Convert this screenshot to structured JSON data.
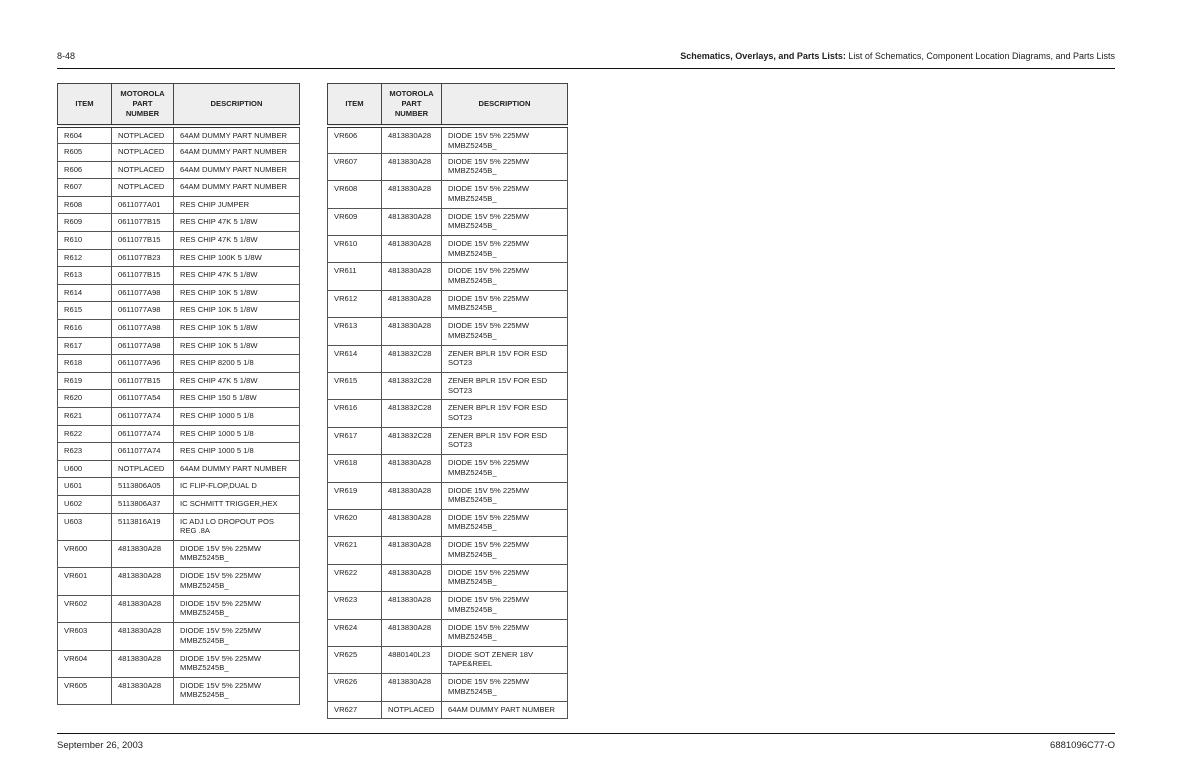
{
  "header": {
    "page_number": "8-48",
    "section_bold": "Schematics, Overlays, and Parts Lists:",
    "section_rest": " List of Schematics, Component Location Diagrams, and Parts Lists"
  },
  "footer": {
    "date": "September 26, 2003",
    "doc_number": "6881096C77-O"
  },
  "columns": {
    "item": "ITEM",
    "part_line1": "MOTOROLA",
    "part_line2": "PART",
    "part_line3": "NUMBER",
    "description": "DESCRIPTION"
  },
  "left_table": [
    [
      "R604",
      "NOTPLACED",
      "64AM DUMMY PART NUMBER"
    ],
    [
      "R605",
      "NOTPLACED",
      "64AM DUMMY PART NUMBER"
    ],
    [
      "R606",
      "NOTPLACED",
      "64AM DUMMY PART NUMBER"
    ],
    [
      "R607",
      "NOTPLACED",
      "64AM DUMMY PART NUMBER"
    ],
    [
      "R608",
      "0611077A01",
      "RES CHIP JUMPER"
    ],
    [
      "R609",
      "0611077B15",
      "RES CHIP 47K 5 1/8W"
    ],
    [
      "R610",
      "0611077B15",
      "RES CHIP 47K 5 1/8W"
    ],
    [
      "R612",
      "0611077B23",
      "RES CHIP 100K 5 1/8W"
    ],
    [
      "R613",
      "0611077B15",
      "RES CHIP 47K 5 1/8W"
    ],
    [
      "R614",
      "0611077A98",
      "RES CHIP 10K 5 1/8W"
    ],
    [
      "R615",
      "0611077A98",
      "RES CHIP 10K 5 1/8W"
    ],
    [
      "R616",
      "0611077A98",
      "RES CHIP 10K 5 1/8W"
    ],
    [
      "R617",
      "0611077A98",
      "RES CHIP 10K 5 1/8W"
    ],
    [
      "R618",
      "0611077A96",
      "RES CHIP 8200 5 1/8"
    ],
    [
      "R619",
      "0611077B15",
      "RES CHIP 47K 5 1/8W"
    ],
    [
      "R620",
      "0611077A54",
      "RES CHIP 150 5 1/8W"
    ],
    [
      "R621",
      "0611077A74",
      "RES CHIP 1000 5 1/8"
    ],
    [
      "R622",
      "0611077A74",
      "RES CHIP 1000 5 1/8"
    ],
    [
      "R623",
      "0611077A74",
      "RES CHIP 1000 5 1/8"
    ],
    [
      "U600",
      "NOTPLACED",
      "64AM DUMMY PART NUMBER"
    ],
    [
      "U601",
      "5113806A05",
      "IC FLIP-FLOP,DUAL D"
    ],
    [
      "U602",
      "5113806A37",
      "IC SCHMITT TRIGGER,HEX"
    ],
    [
      "U603",
      "5113816A19",
      "IC ADJ LO DROPOUT POS",
      "REG .8A"
    ],
    [
      "VR600",
      "4813830A28",
      "DIODE 15V 5% 225MW",
      "MMBZ5245B_"
    ],
    [
      "VR601",
      "4813830A28",
      "DIODE 15V 5% 225MW",
      "MMBZ5245B_"
    ],
    [
      "VR602",
      "4813830A28",
      "DIODE 15V 5% 225MW",
      "MMBZ5245B_"
    ],
    [
      "VR603",
      "4813830A28",
      "DIODE 15V 5% 225MW",
      "MMBZ5245B_"
    ],
    [
      "VR604",
      "4813830A28",
      "DIODE 15V 5% 225MW",
      "MMBZ5245B_"
    ],
    [
      "VR605",
      "4813830A28",
      "DIODE 15V 5% 225MW",
      "MMBZ5245B_"
    ]
  ],
  "right_table": [
    [
      "VR606",
      "4813830A28",
      "DIODE 15V 5% 225MW",
      "MMBZ5245B_"
    ],
    [
      "VR607",
      "4813830A28",
      "DIODE 15V 5% 225MW",
      "MMBZ5245B_"
    ],
    [
      "VR608",
      "4813830A28",
      "DIODE 15V 5% 225MW",
      "MMBZ5245B_"
    ],
    [
      "VR609",
      "4813830A28",
      "DIODE 15V 5% 225MW",
      "MMBZ5245B_"
    ],
    [
      "VR610",
      "4813830A28",
      "DIODE 15V 5% 225MW",
      "MMBZ5245B_"
    ],
    [
      "VR611",
      "4813830A28",
      "DIODE 15V 5% 225MW",
      "MMBZ5245B_"
    ],
    [
      "VR612",
      "4813830A28",
      "DIODE 15V 5% 225MW",
      "MMBZ5245B_"
    ],
    [
      "VR613",
      "4813830A28",
      "DIODE 15V 5% 225MW",
      "MMBZ5245B_"
    ],
    [
      "VR614",
      "4813832C28",
      "ZENER BPLR 15V FOR ESD",
      "SOT23"
    ],
    [
      "VR615",
      "4813832C28",
      "ZENER BPLR 15V FOR ESD",
      "SOT23"
    ],
    [
      "VR616",
      "4813832C28",
      "ZENER BPLR 15V FOR ESD",
      "SOT23"
    ],
    [
      "VR617",
      "4813832C28",
      "ZENER BPLR 15V FOR ESD",
      "SOT23"
    ],
    [
      "VR618",
      "4813830A28",
      "DIODE 15V 5% 225MW",
      "MMBZ5245B_"
    ],
    [
      "VR619",
      "4813830A28",
      "DIODE 15V 5% 225MW",
      "MMBZ5245B_"
    ],
    [
      "VR620",
      "4813830A28",
      "DIODE 15V 5% 225MW",
      "MMBZ5245B_"
    ],
    [
      "VR621",
      "4813830A28",
      "DIODE 15V 5% 225MW",
      "MMBZ5245B_"
    ],
    [
      "VR622",
      "4813830A28",
      "DIODE 15V 5% 225MW",
      "MMBZ5245B_"
    ],
    [
      "VR623",
      "4813830A28",
      "DIODE 15V 5% 225MW",
      "MMBZ5245B_"
    ],
    [
      "VR624",
      "4813830A28",
      "DIODE 15V 5% 225MW",
      "MMBZ5245B_"
    ],
    [
      "VR625",
      "4880140L23",
      "DIODE SOT ZENER 18V",
      "TAPE&REEL"
    ],
    [
      "VR626",
      "4813830A28",
      "DIODE 15V 5% 225MW",
      "MMBZ5245B_"
    ],
    [
      "VR627",
      "NOTPLACED",
      "64AM DUMMY PART NUMBER"
    ]
  ]
}
